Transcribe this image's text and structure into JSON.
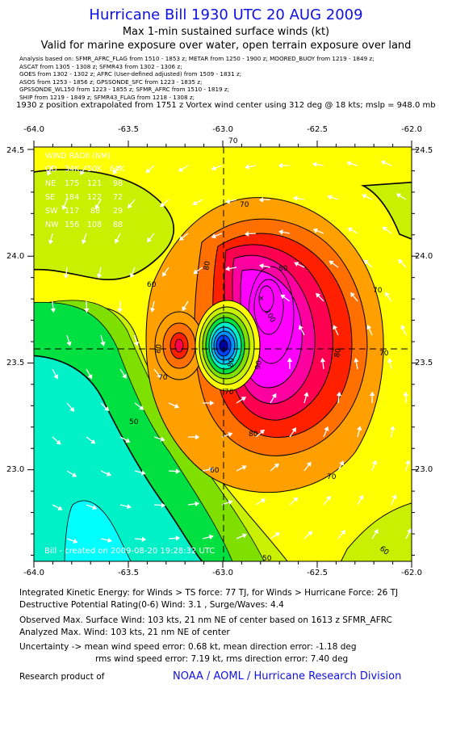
{
  "header": {
    "title": "Hurricane Bill 1930 UTC 20 AUG 2009",
    "subtitle1": "Max 1-min sustained surface winds (kt)",
    "subtitle2": "Valid for marine exposure over water, open terrain exposure over land"
  },
  "analysis_sources": [
    "Analysis based on: SFMR_AFRC_FLAG from 1510 - 1853 z;   METAR from 1250 - 1900 z;   MOORED_BUOY from 1219 - 1849 z;",
    "ASCAT from 1305 - 1308 z;  SFMR43 from 1302 - 1306 z;",
    "GOES from 1302 - 1302 z;   AFRC (User-defined adjusted) from 1509 - 1831 z;",
    "ASOS from 1253 - 1856 z;  GPSSONDE_SFC from 1223 - 1835 z;",
    "GPSSONDE_WL150 from 1223 - 1855 z;  SFMR_AFRC from 1510 - 1819 z;",
    "SHIP from 1219 - 1849 z;  SFMR43_FLAG from 1218 - 1308 z;"
  ],
  "position_note": "1930 z position extrapolated from 1751 z Vortex wind center using 312 deg @ 18 kts; mslp = 948.0 mb",
  "map": {
    "lon_ticks": [
      "-64.0",
      "-63.5",
      "-63.0",
      "-62.5",
      "-62.0"
    ],
    "lat_ticks": [
      "24.5",
      "24.0",
      "23.5",
      "23.0"
    ],
    "center": {
      "lon": -63.0,
      "lat": 23.56
    },
    "contour_labels": [
      "70",
      "70",
      "80",
      "60",
      "80",
      "100",
      "80",
      "70",
      "80",
      "70",
      "50",
      "60",
      "70",
      "80",
      "90",
      "80",
      "70",
      "60",
      "50",
      "70"
    ],
    "palette": {
      "cyan": "#00ffff",
      "aqua": "#00f0c8",
      "green": "#00e040",
      "lime": "#7fe000",
      "yellowgreen": "#c8f000",
      "yellow": "#ffff00",
      "orange": "#ffa000",
      "darkorange": "#ff7000",
      "red": "#ff2000",
      "crimson": "#ff0050",
      "pink": "#ff00a0",
      "magenta": "#ff00ff",
      "blue": "#0000ff",
      "darkblue": "#0000a0"
    },
    "wind_radii": {
      "header": "WIND RADII (NM)",
      "columns": [
        "QD",
        "34K",
        "50K",
        "64K"
      ],
      "rows": [
        [
          "NE",
          "175",
          "121",
          "98"
        ],
        [
          "SE",
          "184",
          "122",
          "72"
        ],
        [
          "SW",
          "117",
          "88",
          "29"
        ],
        [
          "NW",
          "156",
          "108",
          "88"
        ]
      ]
    },
    "watermark": "Bill  -  created  on  2009-08-20  19:28:32  UTC"
  },
  "footer": {
    "ike": "Integrated Kinetic Energy:  for Winds > TS force: 77 TJ,  for Winds > Hurricane Force: 26 TJ",
    "dpr": "Destructive Potential Rating(0-6)   Wind: 3.1 , Surge/Waves: 4.4",
    "obs_max": "Observed Max. Surface Wind: 103 kts, 21 nm NE of center based on 1613 z SFMR_AFRC",
    "ana_max": "Analyzed Max. Wind: 103 kts, 21 nm NE of center",
    "unc1": "Uncertainty -> mean wind speed error: 0.68 kt,   mean direction error:  -1.18 deg",
    "unc2": "rms wind speed error: 7.19 kt,   rms direction error: 7.40 deg",
    "research": "Research product of",
    "org": "NOAA / AOML / Hurricane Research Division"
  }
}
